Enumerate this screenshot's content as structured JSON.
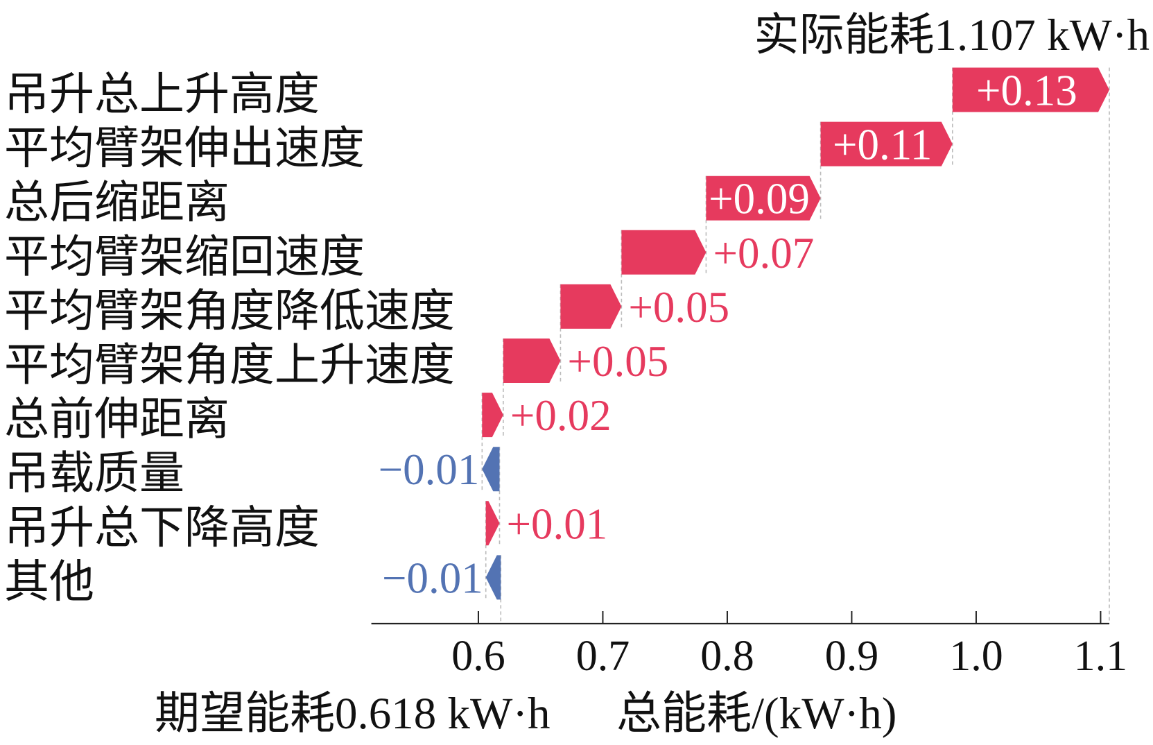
{
  "chart_data": {
    "type": "bar",
    "variant": "waterfall",
    "orientation": "horizontal",
    "categories": [
      "吊升总上升高度",
      "平均臂架伸出速度",
      "总后缩距离",
      "平均臂架缩回速度",
      "平均臂架角度降低速度",
      "平均臂架角度上升速度",
      "总前伸距离",
      "吊载质量",
      "吊升总下降高度",
      "其他"
    ],
    "values": [
      0.126,
      0.106,
      0.092,
      0.068,
      0.049,
      0.046,
      0.017,
      -0.014,
      0.011,
      -0.012
    ],
    "value_labels": [
      "+0.13",
      "+0.11",
      "+0.09",
      "+0.07",
      "+0.05",
      "+0.05",
      "+0.02",
      "−0.01",
      "+0.01",
      "−0.01"
    ],
    "base_value": 0.618,
    "final_value": 1.107,
    "base_label": "期望能耗0.618 kW·h",
    "final_label": "实际能耗1.107 kW·h",
    "xlabel": "总能耗/(kW·h)",
    "xlim": [
      0.514,
      1.107
    ],
    "xticks": [
      0.6,
      0.7,
      0.8,
      0.9,
      1.0,
      1.1
    ],
    "xtick_labels": [
      "0.6",
      "0.7",
      "0.8",
      "0.9",
      "1.0",
      "1.1"
    ],
    "grid": false,
    "colors": {
      "positive": "#e63a5e",
      "negative": "#5373b3",
      "connector": "#bbbbbb",
      "axis": "#222222",
      "inside_label": "#ffffff"
    }
  }
}
